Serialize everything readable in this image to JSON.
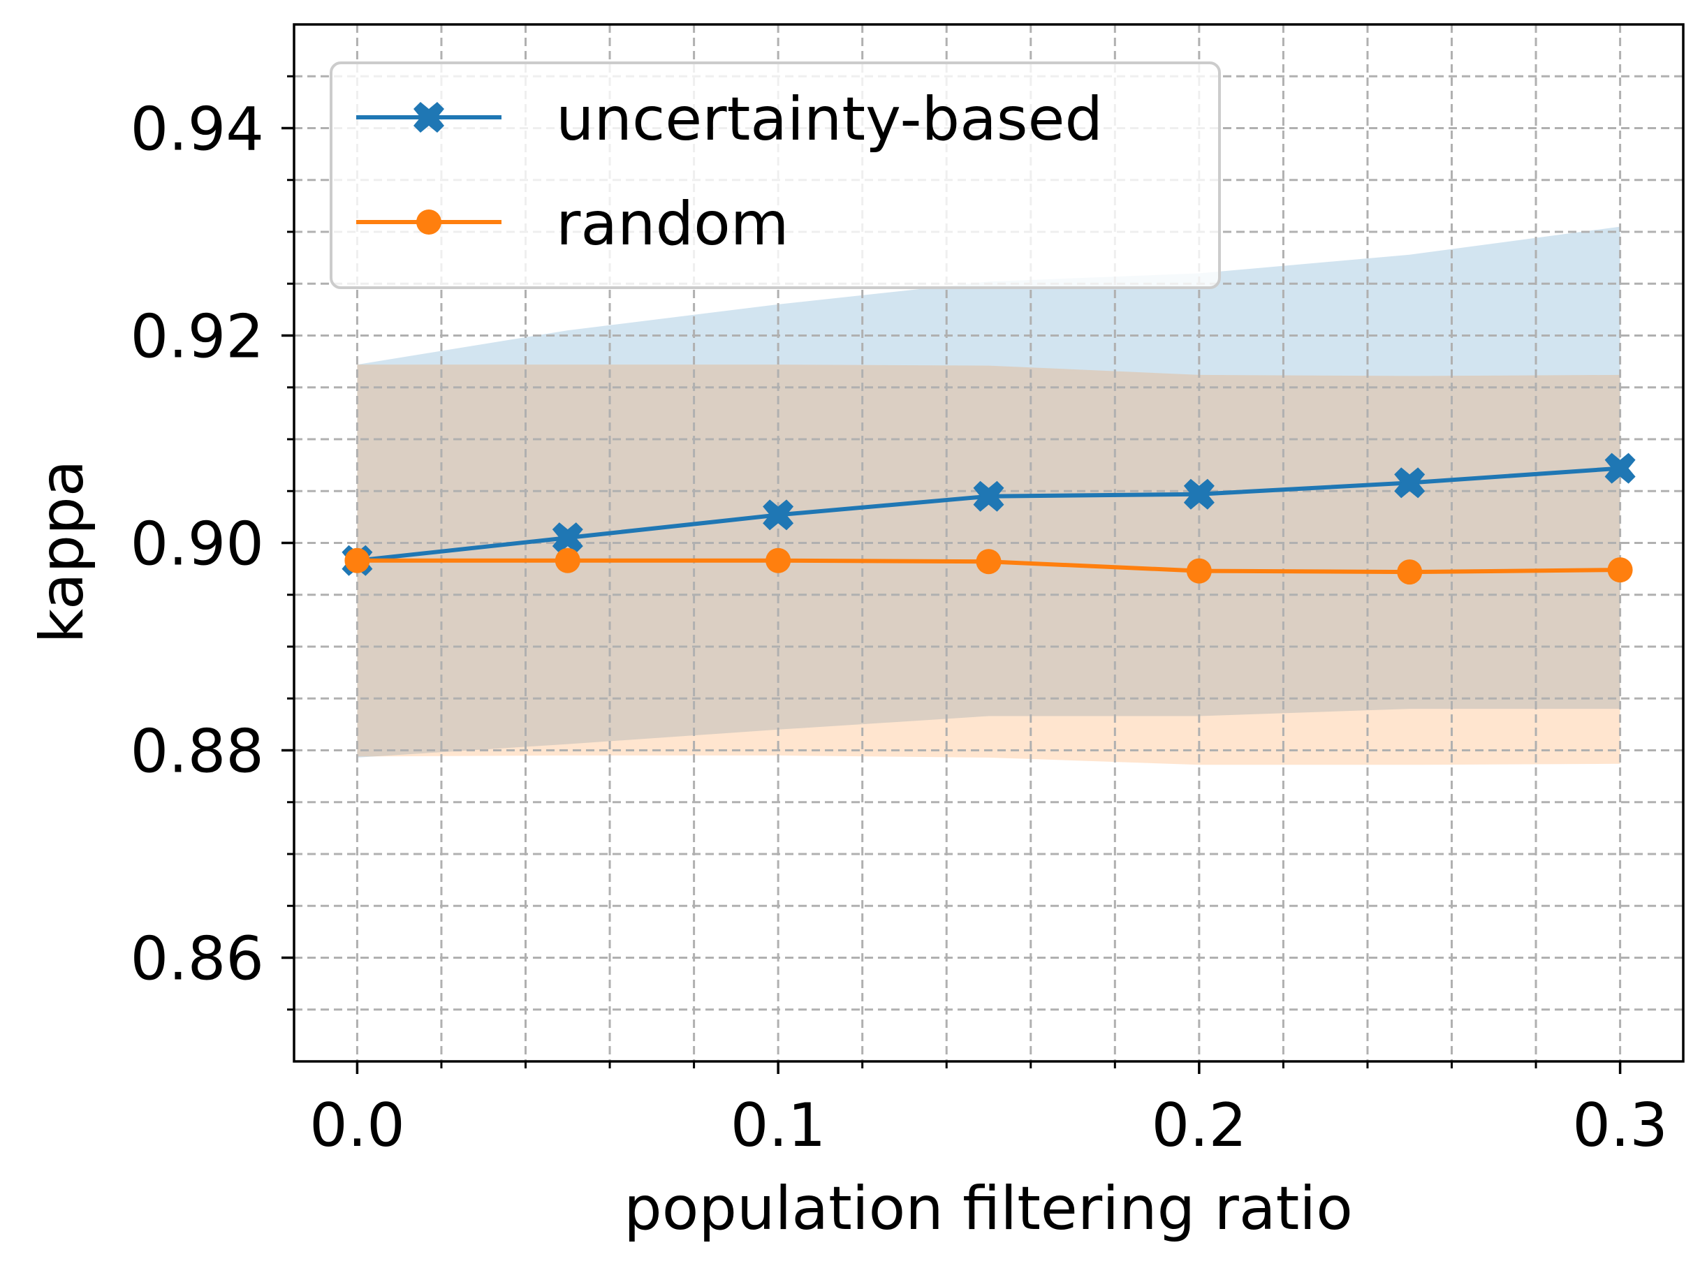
{
  "chart_data": {
    "type": "line",
    "title": "",
    "xlabel": "population filtering ratio",
    "ylabel": "kappa",
    "xlim": [
      -0.015,
      0.315
    ],
    "ylim": [
      0.85,
      0.95
    ],
    "x": [
      0.0,
      0.05,
      0.1,
      0.15,
      0.2,
      0.25,
      0.3
    ],
    "x_ticks": [
      0.0,
      0.1,
      0.2,
      0.3
    ],
    "x_tick_labels": [
      "0.0",
      "0.1",
      "0.2",
      "0.3"
    ],
    "x_minor_ticks": [
      0.02,
      0.04,
      0.06,
      0.08,
      0.12,
      0.14,
      0.16,
      0.18,
      0.22,
      0.24,
      0.26,
      0.28
    ],
    "y_ticks": [
      0.86,
      0.88,
      0.9,
      0.92,
      0.94
    ],
    "y_tick_labels": [
      "0.86",
      "0.88",
      "0.90",
      "0.92",
      "0.94"
    ],
    "y_minor_ticks": [
      0.855,
      0.865,
      0.87,
      0.875,
      0.885,
      0.89,
      0.895,
      0.905,
      0.91,
      0.915,
      0.925,
      0.93,
      0.935,
      0.945
    ],
    "grid": true,
    "legend_position": "top-left",
    "series": [
      {
        "name": "uncertainty-based",
        "color": "#1f77b4",
        "marker": "X",
        "values": [
          0.8983,
          0.9005,
          0.9027,
          0.9045,
          0.9047,
          0.9058,
          0.9072
        ],
        "band_upper": [
          0.9172,
          0.9205,
          0.923,
          0.9252,
          0.926,
          0.9278,
          0.9305
        ],
        "band_lower": [
          0.8793,
          0.8806,
          0.882,
          0.8833,
          0.8833,
          0.884,
          0.884
        ]
      },
      {
        "name": "random",
        "color": "#ff7f0e",
        "marker": "o",
        "values": [
          0.8983,
          0.8983,
          0.8983,
          0.8982,
          0.8973,
          0.8972,
          0.8974
        ],
        "band_upper": [
          0.9172,
          0.9172,
          0.9172,
          0.9171,
          0.9162,
          0.9161,
          0.9162
        ],
        "band_lower": [
          0.8794,
          0.8795,
          0.8795,
          0.8793,
          0.8786,
          0.8786,
          0.8787
        ]
      }
    ]
  }
}
